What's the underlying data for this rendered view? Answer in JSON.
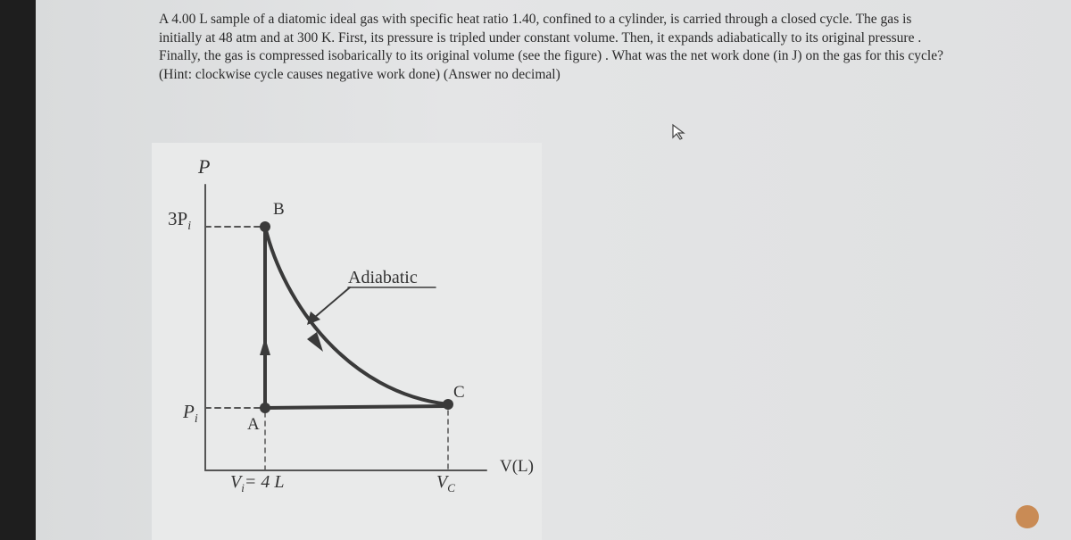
{
  "question": {
    "lines": [
      "A 4.00 L sample of a diatomic ideal gas with specific heat ratio 1.40, confined to a cylinder, is carried through a closed cycle.  The gas is",
      "initially at 48 atm and at 300 K.  First, its pressure is tripled under constant volume.  Then, it expands adiabatically to its original pressure .",
      "Finally, the gas is compressed isobarically to its original volume (see the figure) . What was the net work done (in J) on the gas for this cycle?",
      "(Hint: clockwise cycle causes negative work done) (Answer no decimal)"
    ]
  },
  "figure": {
    "p_axis": "P",
    "v_axis": "V(L)",
    "p_high": {
      "text": "3P",
      "sub": "i"
    },
    "p_low": {
      "text": "P",
      "sub": "i"
    },
    "v_initial": {
      "text": "V",
      "sub": "i",
      "rest": "= 4 L"
    },
    "v_final": {
      "text": "V",
      "sub": "C"
    },
    "point_a": "A",
    "point_b": "B",
    "point_c": "C",
    "curve_label": "Adiabatic"
  }
}
